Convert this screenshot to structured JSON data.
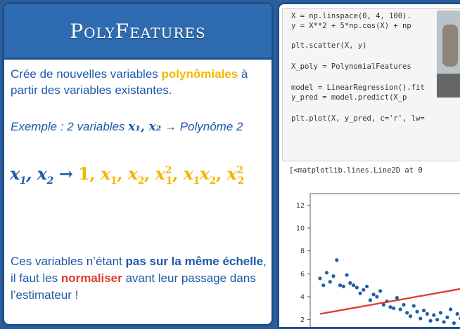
{
  "left": {
    "title": "PolyFeatures",
    "desc_part1": "Crée de nouvelles variables ",
    "desc_highlight": "polynômiales",
    "desc_part2": " à partir des variables existantes.",
    "example_prefix": "Exemple : 2 variables ",
    "example_vars": "x₁, x₂",
    "example_suffix": " → Polynôme 2",
    "note_part1": "Ces variables n’étant ",
    "note_bold1": "pas sur la même échelle",
    "note_part2": ", il faut les ",
    "note_red": "normaliser",
    "note_part3": " avant leur passage dans l’estimateur !"
  },
  "code": {
    "lines": [
      "X = np.linspace(0, 4, 100).",
      "y = X**2 + 5*np.cos(X) + np",
      "",
      "plt.scatter(X, y)",
      "",
      "X_poly = PolynomialFeatures",
      "",
      "model = LinearRegression().fit",
      "y_pred = model.predict(X_p",
      "",
      "plt.plot(X, y_pred, c='r', lw="
    ],
    "output": "[<matplotlib.lines.Line2D at 0"
  },
  "chart_data": {
    "type": "scatter",
    "yticks": [
      "12",
      "10",
      "8",
      "6",
      "4",
      "2"
    ],
    "ylim": [
      1,
      13
    ],
    "x": [
      0.0,
      0.04,
      0.08,
      0.12,
      0.16,
      0.2,
      0.24,
      0.28,
      0.32,
      0.36,
      0.4,
      0.44,
      0.48,
      0.52,
      0.56,
      0.6,
      0.64,
      0.68,
      0.72,
      0.76,
      0.8,
      0.84,
      0.88,
      0.92,
      0.96,
      1.0,
      1.04,
      1.08,
      1.12,
      1.16,
      1.2,
      1.24,
      1.28,
      1.32,
      1.36,
      1.4,
      1.44,
      1.48,
      1.52,
      1.56,
      1.6,
      1.64,
      1.68,
      1.72,
      1.76,
      1.8,
      1.84,
      1.88,
      1.92,
      1.96,
      2.0
    ],
    "y": [
      5.6,
      5.0,
      6.1,
      5.3,
      5.8,
      7.2,
      5.0,
      4.9,
      5.9,
      5.2,
      5.0,
      4.8,
      4.3,
      4.6,
      4.9,
      3.7,
      4.2,
      4.0,
      4.5,
      3.3,
      3.6,
      3.1,
      3.0,
      3.9,
      2.9,
      3.3,
      2.6,
      2.3,
      3.2,
      2.7,
      2.1,
      2.8,
      2.5,
      1.9,
      2.4,
      2.0,
      2.6,
      1.8,
      2.2,
      2.9,
      1.7,
      2.5,
      2.1,
      1.6,
      2.3,
      2.7,
      1.8,
      2.4,
      1.9,
      2.2,
      2.8
    ],
    "series": [
      {
        "color": "#e23b2e",
        "x": [
          0.0,
          2.0
        ],
        "y": [
          2.5,
          5.1
        ]
      }
    ],
    "point_color": "#1f5fa6"
  }
}
